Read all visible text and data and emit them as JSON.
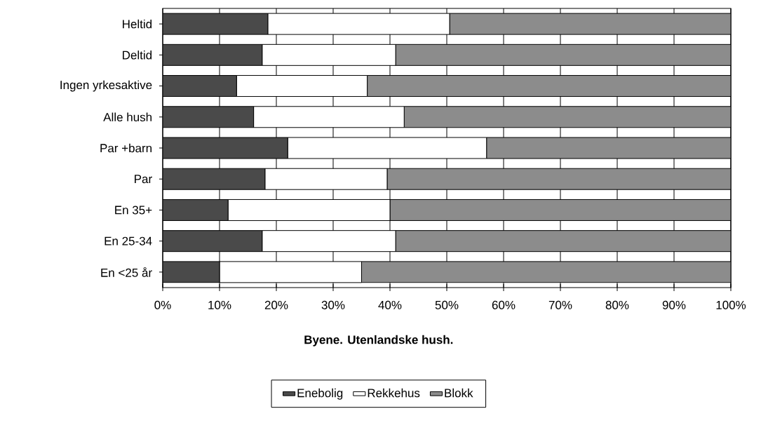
{
  "chart_data": {
    "type": "bar",
    "orientation": "horizontal",
    "stacked": true,
    "xlabel": "Byene. Utenlandske hush.",
    "categories": [
      "Heltid",
      "Deltid",
      "Ingen yrkesaktive",
      "Alle hush",
      "Par +barn",
      "Par",
      "En 35+",
      "En 25-34",
      "En <25 år"
    ],
    "series": [
      {
        "name": "Enebolig",
        "color": "#4a4a4a",
        "values": [
          18.5,
          17.5,
          13,
          16,
          22,
          18,
          11.5,
          17.5,
          10
        ]
      },
      {
        "name": "Rekkehus",
        "color": "#ffffff",
        "values": [
          32,
          23.5,
          23,
          26.5,
          35,
          21.5,
          28.5,
          23.5,
          25
        ]
      },
      {
        "name": "Blokk",
        "color": "#8c8c8c",
        "values": [
          49.5,
          59,
          64,
          57.5,
          43,
          60.5,
          60,
          59,
          65
        ]
      }
    ],
    "xlim": [
      0,
      100
    ],
    "xticks": [
      {
        "value": 0,
        "label": "0%"
      },
      {
        "value": 10,
        "label": "10%"
      },
      {
        "value": 20,
        "label": "20%"
      },
      {
        "value": 30,
        "label": "30%"
      },
      {
        "value": 40,
        "label": "40%"
      },
      {
        "value": 50,
        "label": "50%"
      },
      {
        "value": 60,
        "label": "60%"
      },
      {
        "value": 70,
        "label": "70%"
      },
      {
        "value": 80,
        "label": "80%"
      },
      {
        "value": 90,
        "label": "90%"
      },
      {
        "value": 100,
        "label": "100%"
      }
    ],
    "grid": "x",
    "legend": "bottom"
  }
}
